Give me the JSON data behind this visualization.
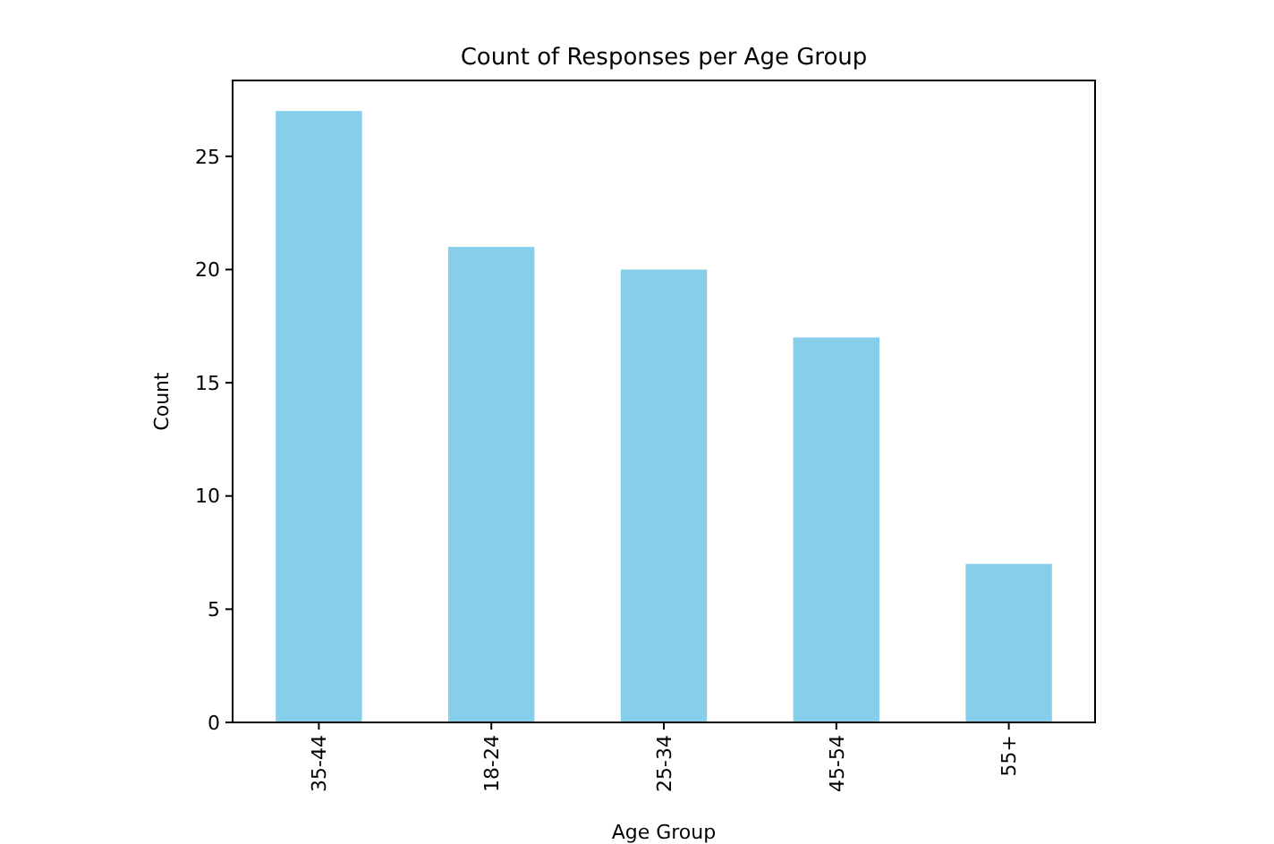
{
  "chart_data": {
    "type": "bar",
    "title": "Count of Responses per Age Group",
    "xlabel": "Age Group",
    "ylabel": "Count",
    "categories": [
      "35-44",
      "18-24",
      "25-34",
      "45-54",
      "55+"
    ],
    "values": [
      27,
      21,
      20,
      17,
      7
    ],
    "color": "#87ceeb",
    "ylim": [
      0,
      28.35
    ],
    "yticks": [
      0,
      5,
      10,
      15,
      20,
      25
    ],
    "grid": false
  }
}
